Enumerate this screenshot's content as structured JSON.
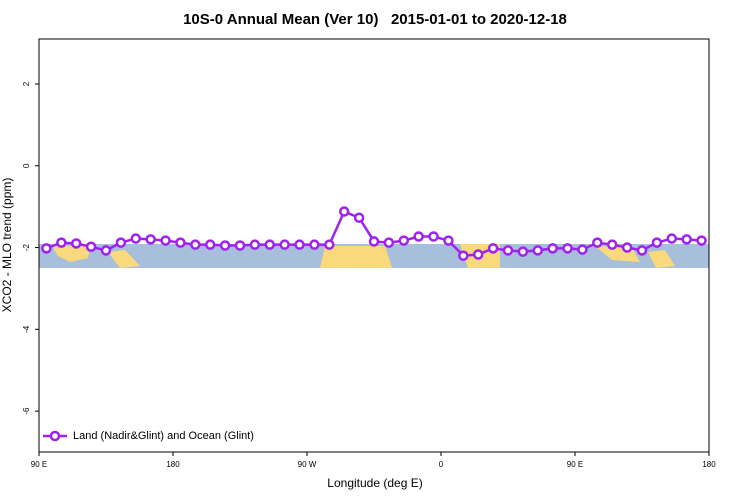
{
  "chart_data": {
    "type": "line",
    "title": "10S-0 Annual Mean (Ver 10)   2015-01-01 to 2020-12-18",
    "xlabel": "Longitude (deg E)",
    "ylabel": "XCO2 - MLO trend (ppm)",
    "x": [
      95,
      105,
      115,
      125,
      135,
      145,
      155,
      165,
      175,
      185,
      195,
      205,
      215,
      225,
      235,
      245,
      255,
      265,
      275,
      285,
      295,
      305,
      315,
      325,
      335,
      345,
      355,
      365,
      375,
      385,
      395,
      405,
      415,
      425,
      435,
      445,
      455,
      465,
      475,
      485,
      495,
      505,
      515,
      525,
      535
    ],
    "series": [
      {
        "name": "Land (Nadir&Glint) and Ocean (Glint)",
        "color": "#a020f0",
        "values": [
          -2.02,
          -1.88,
          -1.9,
          -1.98,
          -2.07,
          -1.88,
          -1.78,
          -1.8,
          -1.83,
          -1.88,
          -1.93,
          -1.93,
          -1.95,
          -1.95,
          -1.93,
          -1.93,
          -1.93,
          -1.93,
          -1.93,
          -1.93,
          -1.12,
          -1.27,
          -1.85,
          -1.88,
          -1.83,
          -1.73,
          -1.73,
          -1.83,
          -2.2,
          -2.17,
          -2.02,
          -2.07,
          -2.1,
          -2.07,
          -2.02,
          -2.02,
          -2.05,
          -1.88,
          -1.93,
          -2.0,
          -2.07,
          -1.88,
          -1.78,
          -1.8,
          -1.83
        ]
      }
    ],
    "xlim": [
      90,
      540
    ],
    "xticks": [
      {
        "value": 90,
        "label": "90 E"
      },
      {
        "value": 180,
        "label": "180"
      },
      {
        "value": 270,
        "label": "90 W"
      },
      {
        "value": 360,
        "label": "0"
      },
      {
        "value": 450,
        "label": "90 E"
      },
      {
        "value": 540,
        "label": "180"
      }
    ],
    "ylim": [
      -7,
      3.1
    ],
    "yticks": [
      -6,
      -4,
      -2,
      0,
      2
    ],
    "legend": "bottom-left"
  }
}
